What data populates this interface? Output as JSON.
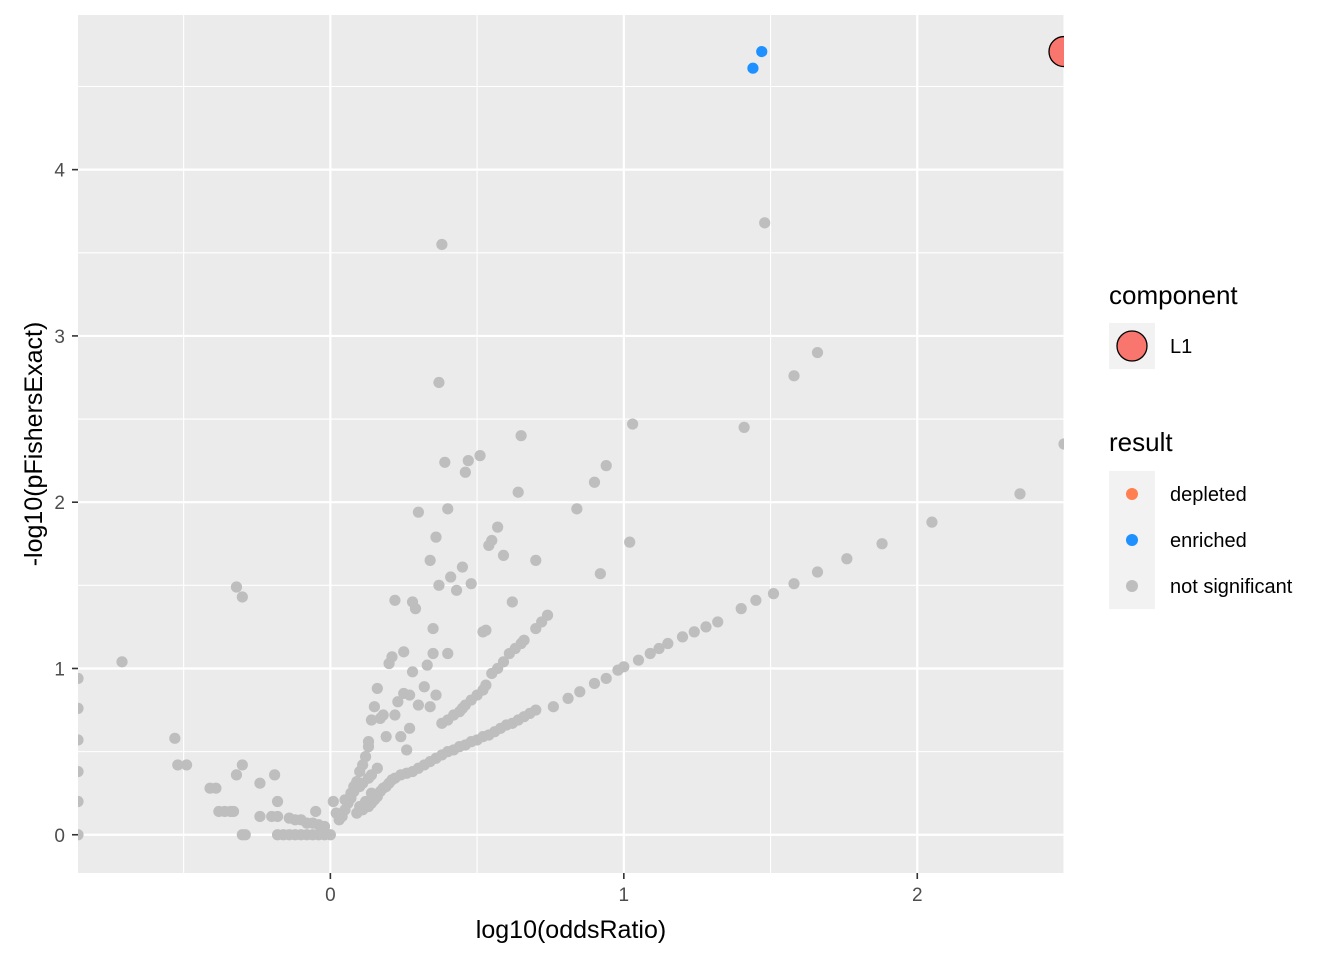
{
  "chart_data": {
    "type": "scatter",
    "title": "",
    "xlabel": "log10(oddsRatio)",
    "ylabel": "-log10(pFishersExact)",
    "xlim": [
      -0.86,
      2.5
    ],
    "ylim": [
      -0.23,
      4.93
    ],
    "x_ticks": [
      {
        "value": 0,
        "label": "0"
      },
      {
        "value": 1,
        "label": "1"
      },
      {
        "value": 2,
        "label": "2"
      }
    ],
    "y_ticks": [
      {
        "value": 0,
        "label": "0"
      },
      {
        "value": 1,
        "label": "1"
      },
      {
        "value": 2,
        "label": "2"
      },
      {
        "value": 3,
        "label": "3"
      },
      {
        "value": 4,
        "label": "4"
      }
    ],
    "grid": true,
    "background": "#ebebeb",
    "legend": {
      "placement": "right",
      "component": {
        "title": "component",
        "items": [
          {
            "label": "L1",
            "color": "#F8766D"
          }
        ]
      },
      "result": {
        "title": "result",
        "items": [
          {
            "label": "depleted",
            "color": "#FF7F50"
          },
          {
            "label": "enriched",
            "color": "#1E90FF"
          },
          {
            "label": "not significant",
            "color": "#BEBEBE"
          }
        ]
      }
    },
    "series": [
      {
        "name": "enriched",
        "color": "#1E90FF",
        "points": [
          [
            1.44,
            4.61
          ],
          [
            1.47,
            4.71
          ]
        ]
      },
      {
        "name": "not significant",
        "color": "#BEBEBE",
        "points": [
          [
            -0.86,
            0.94
          ],
          [
            -0.86,
            0.76
          ],
          [
            -0.86,
            0.57
          ],
          [
            -0.86,
            0.38
          ],
          [
            -0.86,
            0.2
          ],
          [
            -0.86,
            0.0
          ],
          [
            -0.71,
            1.04
          ],
          [
            -0.53,
            0.58
          ],
          [
            -0.52,
            0.42
          ],
          [
            -0.49,
            0.42
          ],
          [
            -0.41,
            0.28
          ],
          [
            -0.39,
            0.28
          ],
          [
            -0.38,
            0.14
          ],
          [
            -0.36,
            0.14
          ],
          [
            -0.34,
            0.14
          ],
          [
            -0.33,
            0.14
          ],
          [
            -0.32,
            1.49
          ],
          [
            -0.3,
            1.43
          ],
          [
            -0.32,
            0.36
          ],
          [
            -0.3,
            0.42
          ],
          [
            -0.3,
            0.0
          ],
          [
            -0.29,
            0.0
          ],
          [
            -0.24,
            0.31
          ],
          [
            -0.24,
            0.11
          ],
          [
            -0.2,
            0.11
          ],
          [
            -0.19,
            0.36
          ],
          [
            -0.18,
            0.2
          ],
          [
            -0.18,
            0.11
          ],
          [
            -0.18,
            0.0
          ],
          [
            -0.16,
            0.0
          ],
          [
            -0.14,
            0.0
          ],
          [
            -0.12,
            0.0
          ],
          [
            -0.1,
            0.0
          ],
          [
            -0.08,
            0.0
          ],
          [
            -0.06,
            0.0
          ],
          [
            -0.14,
            0.1
          ],
          [
            -0.12,
            0.09
          ],
          [
            -0.1,
            0.09
          ],
          [
            -0.08,
            0.07
          ],
          [
            -0.06,
            0.07
          ],
          [
            -0.04,
            0.06
          ],
          [
            -0.05,
            0.14
          ],
          [
            -0.04,
            0.0
          ],
          [
            -0.02,
            0.0
          ],
          [
            0.0,
            0.0
          ],
          [
            -0.02,
            0.05
          ],
          [
            0.01,
            0.2
          ],
          [
            0.02,
            0.13
          ],
          [
            0.03,
            0.09
          ],
          [
            0.04,
            0.11
          ],
          [
            0.05,
            0.15
          ],
          [
            0.06,
            0.19
          ],
          [
            0.07,
            0.25
          ],
          [
            0.08,
            0.29
          ],
          [
            0.09,
            0.32
          ],
          [
            0.1,
            0.38
          ],
          [
            0.11,
            0.42
          ],
          [
            0.12,
            0.47
          ],
          [
            0.13,
            0.53
          ],
          [
            0.05,
            0.21
          ],
          [
            0.07,
            0.22
          ],
          [
            0.08,
            0.26
          ],
          [
            0.1,
            0.29
          ],
          [
            0.11,
            0.31
          ],
          [
            0.13,
            0.34
          ],
          [
            0.14,
            0.36
          ],
          [
            0.16,
            0.4
          ],
          [
            0.09,
            0.13
          ],
          [
            0.11,
            0.15
          ],
          [
            0.13,
            0.17
          ],
          [
            0.14,
            0.19
          ],
          [
            0.1,
            0.17
          ],
          [
            0.12,
            0.2
          ],
          [
            0.14,
            0.25
          ],
          [
            0.15,
            0.21
          ],
          [
            0.16,
            0.23
          ],
          [
            0.17,
            0.26
          ],
          [
            0.18,
            0.28
          ],
          [
            0.19,
            0.29
          ],
          [
            0.2,
            0.31
          ],
          [
            0.21,
            0.33
          ],
          [
            0.22,
            0.34
          ],
          [
            0.24,
            0.36
          ],
          [
            0.26,
            0.37
          ],
          [
            0.28,
            0.38
          ],
          [
            0.3,
            0.4
          ],
          [
            0.32,
            0.42
          ],
          [
            0.34,
            0.44
          ],
          [
            0.36,
            0.46
          ],
          [
            0.38,
            0.48
          ],
          [
            0.4,
            0.5
          ],
          [
            0.42,
            0.51
          ],
          [
            0.44,
            0.53
          ],
          [
            0.46,
            0.54
          ],
          [
            0.48,
            0.56
          ],
          [
            0.5,
            0.57
          ],
          [
            0.52,
            0.59
          ],
          [
            0.54,
            0.6
          ],
          [
            0.56,
            0.62
          ],
          [
            0.58,
            0.64
          ],
          [
            0.6,
            0.66
          ],
          [
            0.62,
            0.67
          ],
          [
            0.64,
            0.69
          ],
          [
            0.66,
            0.71
          ],
          [
            0.68,
            0.73
          ],
          [
            0.7,
            0.75
          ],
          [
            0.76,
            0.77
          ],
          [
            0.81,
            0.82
          ],
          [
            0.85,
            0.86
          ],
          [
            0.9,
            0.91
          ],
          [
            0.94,
            0.94
          ],
          [
            0.98,
            0.99
          ],
          [
            1.0,
            1.01
          ],
          [
            1.05,
            1.05
          ],
          [
            1.09,
            1.09
          ],
          [
            1.12,
            1.12
          ],
          [
            1.15,
            1.15
          ],
          [
            1.2,
            1.19
          ],
          [
            1.24,
            1.22
          ],
          [
            1.28,
            1.25
          ],
          [
            1.32,
            1.28
          ],
          [
            1.4,
            1.36
          ],
          [
            1.45,
            1.41
          ],
          [
            1.51,
            1.45
          ],
          [
            1.58,
            1.51
          ],
          [
            1.66,
            1.58
          ],
          [
            1.76,
            1.66
          ],
          [
            1.88,
            1.75
          ],
          [
            2.05,
            1.88
          ],
          [
            2.35,
            2.05
          ],
          [
            2.5,
            2.35
          ],
          [
            0.13,
            0.56
          ],
          [
            0.14,
            0.69
          ],
          [
            0.15,
            0.77
          ],
          [
            0.16,
            0.88
          ],
          [
            0.17,
            0.7
          ],
          [
            0.18,
            0.72
          ],
          [
            0.19,
            0.59
          ],
          [
            0.2,
            1.03
          ],
          [
            0.21,
            1.07
          ],
          [
            0.22,
            0.72
          ],
          [
            0.23,
            0.8
          ],
          [
            0.24,
            0.59
          ],
          [
            0.25,
            0.85
          ],
          [
            0.25,
            1.1
          ],
          [
            0.26,
            0.51
          ],
          [
            0.27,
            0.64
          ],
          [
            0.27,
            0.84
          ],
          [
            0.28,
            0.98
          ],
          [
            0.3,
            0.78
          ],
          [
            0.32,
            0.89
          ],
          [
            0.33,
            1.02
          ],
          [
            0.34,
            0.77
          ],
          [
            0.36,
            0.84
          ],
          [
            0.28,
            1.4
          ],
          [
            0.29,
            1.36
          ],
          [
            0.22,
            1.41
          ],
          [
            0.35,
            1.24
          ],
          [
            0.34,
            1.65
          ],
          [
            0.36,
            1.79
          ],
          [
            0.37,
            1.5
          ],
          [
            0.3,
            1.94
          ],
          [
            0.38,
            0.67
          ],
          [
            0.4,
            0.69
          ],
          [
            0.42,
            0.72
          ],
          [
            0.44,
            0.74
          ],
          [
            0.45,
            0.76
          ],
          [
            0.46,
            0.78
          ],
          [
            0.48,
            0.81
          ],
          [
            0.5,
            0.84
          ],
          [
            0.52,
            0.87
          ],
          [
            0.53,
            0.9
          ],
          [
            0.55,
            0.97
          ],
          [
            0.57,
            1.0
          ],
          [
            0.59,
            1.04
          ],
          [
            0.61,
            1.09
          ],
          [
            0.63,
            1.12
          ],
          [
            0.65,
            1.15
          ],
          [
            0.66,
            1.17
          ],
          [
            0.7,
            1.24
          ],
          [
            0.72,
            1.28
          ],
          [
            0.74,
            1.32
          ],
          [
            0.35,
            1.09
          ],
          [
            0.4,
            1.09
          ],
          [
            0.41,
            1.55
          ],
          [
            0.43,
            1.47
          ],
          [
            0.45,
            1.61
          ],
          [
            0.48,
            1.51
          ],
          [
            0.52,
            1.22
          ],
          [
            0.53,
            1.23
          ],
          [
            0.54,
            1.74
          ],
          [
            0.55,
            1.77
          ],
          [
            0.57,
            1.85
          ],
          [
            0.59,
            1.68
          ],
          [
            0.62,
            1.4
          ],
          [
            0.64,
            2.06
          ],
          [
            0.65,
            2.4
          ],
          [
            0.7,
            1.65
          ],
          [
            0.51,
            2.28
          ],
          [
            0.46,
            2.18
          ],
          [
            0.47,
            2.25
          ],
          [
            0.39,
            2.24
          ],
          [
            0.4,
            1.96
          ],
          [
            0.37,
            2.72
          ],
          [
            0.38,
            3.55
          ],
          [
            0.84,
            1.96
          ],
          [
            0.9,
            2.12
          ],
          [
            0.92,
            1.57
          ],
          [
            0.94,
            2.22
          ],
          [
            1.03,
            2.47
          ],
          [
            1.02,
            1.76
          ],
          [
            1.41,
            2.45
          ],
          [
            1.58,
            2.76
          ],
          [
            1.66,
            2.9
          ],
          [
            1.48,
            3.68
          ]
        ]
      }
    ],
    "highlight": {
      "component": "L1",
      "color": "#F8766D",
      "point": [
        2.5,
        4.71
      ]
    }
  }
}
